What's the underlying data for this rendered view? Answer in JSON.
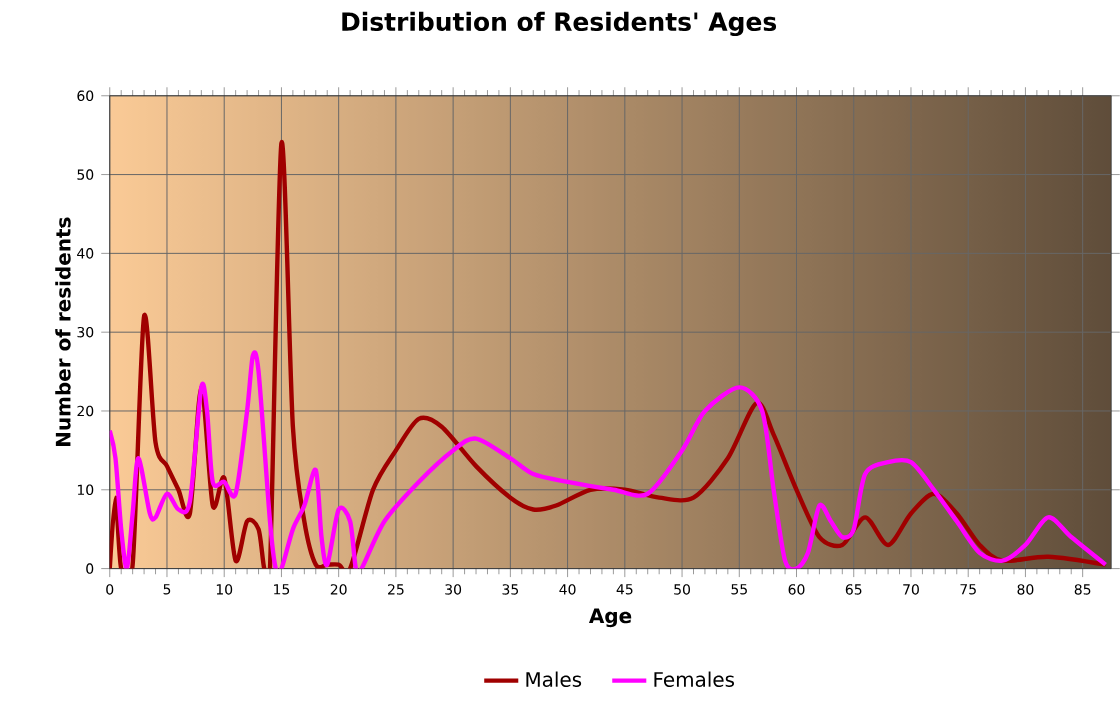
{
  "chart_data": {
    "type": "line",
    "title": "Distribution of Residents' Ages",
    "xlabel": "Age",
    "ylabel": "Number of residents",
    "xlim": [
      0,
      87.5
    ],
    "ylim": [
      0,
      60
    ],
    "xticks": [
      0,
      5,
      10,
      15,
      20,
      25,
      30,
      35,
      40,
      45,
      50,
      55,
      60,
      65,
      70,
      75,
      80,
      85
    ],
    "yticks": [
      0,
      10,
      20,
      30,
      40,
      50,
      60
    ],
    "grid": true,
    "legend": "bottom",
    "series": [
      {
        "name": "Males",
        "color": "#a00000",
        "x": [
          0,
          0.5,
          1,
          2,
          3,
          4,
          5,
          6,
          7,
          8,
          9,
          10,
          11,
          12,
          13,
          13.5,
          14,
          15,
          16,
          17,
          18,
          19,
          20,
          21,
          23,
          25,
          27,
          29,
          32,
          35,
          37,
          39,
          42,
          45,
          48,
          51,
          54,
          56.5,
          58,
          60,
          62,
          64,
          66,
          68,
          70,
          72,
          74,
          76,
          78,
          82,
          87
        ],
        "values": [
          0,
          9,
          0,
          0.5,
          32,
          16,
          13,
          10,
          7,
          23,
          8,
          11.5,
          1,
          6,
          5,
          0,
          0,
          54,
          18,
          6,
          0.5,
          0.5,
          0.5,
          0,
          10,
          15,
          19,
          18,
          13,
          9,
          7.5,
          8,
          10,
          10,
          9,
          9,
          14,
          21,
          17,
          10,
          4,
          3,
          6.5,
          3,
          7,
          9.5,
          7,
          3,
          1,
          1.5,
          0.5
        ]
      },
      {
        "name": "Females",
        "color": "#ff00ff",
        "x": [
          0,
          0.5,
          1,
          1.5,
          2,
          2.5,
          3.5,
          4,
          5,
          6,
          7,
          8,
          8.5,
          9,
          10,
          11,
          12,
          12.5,
          13,
          14,
          14.5,
          15,
          16,
          17,
          18,
          18.5,
          19,
          20,
          21,
          21.5,
          22,
          24,
          27,
          30,
          32,
          35,
          37,
          40,
          44,
          47,
          50,
          52,
          55,
          57,
          58,
          59,
          60,
          61,
          62,
          63,
          64,
          65,
          66,
          68,
          70,
          72,
          74,
          76,
          78,
          80,
          82,
          84,
          87
        ],
        "values": [
          17.5,
          14,
          5,
          0,
          7,
          14,
          7,
          6.5,
          9.5,
          7.5,
          8.5,
          23,
          20,
          11,
          11,
          9.5,
          20,
          27,
          25,
          6,
          0,
          0,
          5,
          8,
          12.5,
          4,
          0.5,
          7.5,
          6,
          0,
          0,
          6,
          11,
          15,
          16.5,
          14,
          12,
          11,
          10,
          9.5,
          15,
          20,
          23,
          20,
          10,
          1,
          0,
          2,
          8,
          6,
          4,
          5,
          12,
          13.5,
          13.5,
          10,
          6,
          2,
          1,
          3,
          6.5,
          4,
          0.5
        ]
      }
    ]
  }
}
